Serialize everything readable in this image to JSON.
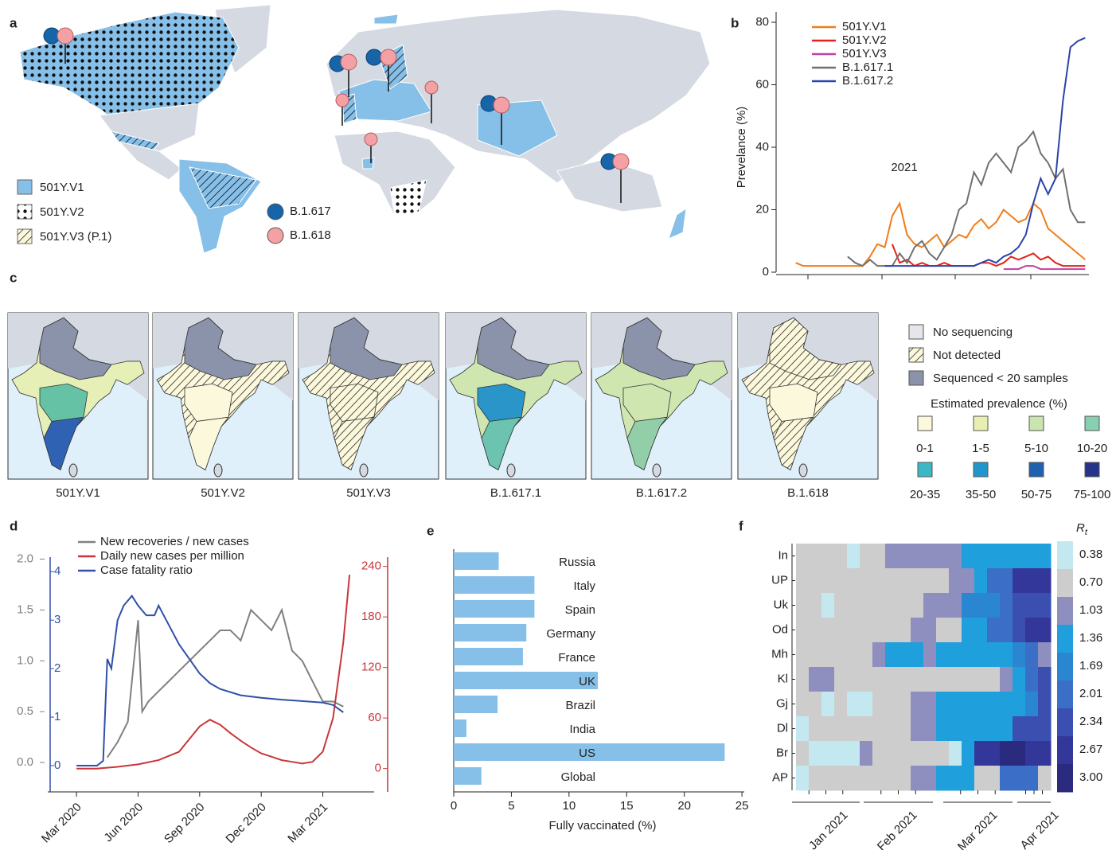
{
  "panel_labels": [
    "a",
    "b",
    "c",
    "d",
    "e",
    "f"
  ],
  "map_a": {
    "legend": [
      "501Y.V1",
      "501Y.V2",
      "501Y.V3 (P.1)"
    ],
    "pins": [
      "B.1.617",
      "B.1.618"
    ]
  },
  "map_c": {
    "panels": [
      "501Y.V1",
      "501Y.V2",
      "501Y.V3",
      "B.1.617.1",
      "B.1.617.2",
      "B.1.618"
    ],
    "legend": [
      "No sequencing",
      "Not detected",
      "Sequenced < 20 samples"
    ],
    "scale_title": "Estimated prevalence (%)",
    "bins": [
      "0-1",
      "1-5",
      "5-10",
      "10-20",
      "20-35",
      "35-50",
      "50-75",
      "75-100"
    ]
  },
  "chart_data": [
    {
      "type": "line",
      "ylabel": "Prevelance (%)",
      "annotation": "2021",
      "categories": [
        null,
        null,
        null,
        null,
        null,
        null,
        null,
        null,
        null,
        null,
        null,
        null,
        null,
        null,
        null,
        null,
        null,
        null,
        null,
        null,
        null,
        null,
        null,
        null,
        null,
        null,
        null,
        null,
        null,
        null,
        null,
        null,
        null,
        null,
        null,
        null,
        null,
        null,
        null,
        null
      ],
      "ylim": [
        0,
        80
      ],
      "yticks": [
        0,
        20,
        40,
        60,
        80
      ],
      "series": [
        {
          "name": "501Y.V1",
          "color": "#f07d1a",
          "values": [
            3,
            2,
            2,
            2,
            2,
            2,
            2,
            2,
            2,
            2,
            5,
            9,
            8,
            18,
            22,
            12,
            9,
            8,
            10,
            12,
            8,
            10,
            12,
            11,
            15,
            17,
            14,
            16,
            20,
            18,
            16,
            17,
            22,
            20,
            14,
            12,
            10,
            8,
            6,
            4
          ]
        },
        {
          "name": "501Y.V2",
          "color": "#e2231a",
          "values": [
            null,
            null,
            null,
            null,
            null,
            null,
            null,
            null,
            null,
            null,
            null,
            null,
            null,
            9,
            3,
            4,
            2,
            3,
            2,
            2,
            3,
            2,
            2,
            2,
            2,
            3,
            3,
            2,
            3,
            5,
            4,
            5,
            6,
            4,
            5,
            3,
            2,
            2,
            2,
            2
          ]
        },
        {
          "name": "501Y.V3",
          "color": "#c040a0",
          "values": [
            null,
            null,
            null,
            null,
            null,
            null,
            null,
            null,
            null,
            null,
            null,
            null,
            null,
            null,
            null,
            null,
            null,
            null,
            null,
            null,
            null,
            null,
            null,
            null,
            null,
            null,
            null,
            null,
            1,
            1,
            1,
            2,
            2,
            1,
            1,
            1,
            1,
            1,
            1,
            1
          ]
        },
        {
          "name": "B.1.617.1",
          "color": "#707070",
          "values": [
            null,
            null,
            null,
            null,
            null,
            null,
            null,
            5,
            3,
            2,
            4,
            2,
            2,
            2,
            6,
            3,
            8,
            10,
            6,
            4,
            8,
            12,
            20,
            22,
            32,
            28,
            35,
            38,
            35,
            32,
            40,
            42,
            45,
            38,
            35,
            30,
            33,
            20,
            16,
            16
          ]
        },
        {
          "name": "B.1.617.2",
          "color": "#2a44a8",
          "values": [
            null,
            null,
            null,
            null,
            null,
            null,
            null,
            null,
            null,
            null,
            null,
            null,
            2,
            2,
            2,
            2,
            2,
            2,
            2,
            2,
            2,
            2,
            2,
            2,
            2,
            3,
            4,
            3,
            5,
            6,
            8,
            12,
            22,
            30,
            25,
            30,
            55,
            72,
            74,
            75
          ]
        }
      ]
    },
    {
      "type": "multi-axis-line",
      "xlim": [
        -1.4,
        14.5
      ],
      "xticks": [
        {
          "value": 0,
          "label": "Mar 2020"
        },
        {
          "value": 3,
          "label": "Jun 2020"
        },
        {
          "value": 6,
          "label": "Sep 2020"
        },
        {
          "value": 9,
          "label": "Dec 2020"
        },
        {
          "value": 12,
          "label": "Mar 2021"
        }
      ],
      "ylim": [
        -0.25,
        2.02
      ],
      "yticks": [
        {
          "value": 0,
          "label": "0.0"
        },
        0.5,
        {
          "value": 1,
          "label": "1.0"
        },
        1.5,
        {
          "value": 2,
          "label": "2.0"
        }
      ],
      "y2lim": [
        -0.46,
        4.3
      ],
      "y2ticks": [
        0,
        1,
        2,
        3,
        4
      ],
      "y3lim": [
        -23,
        251
      ],
      "y3ticks": [
        0,
        60,
        120,
        180,
        240
      ],
      "series": [
        {
          "name": "New recoveries / new cases",
          "color": "#808080",
          "axis": "y",
          "x": [
            1.5,
            2,
            2.5,
            3,
            3.2,
            3.5,
            4,
            4.5,
            5,
            5.5,
            6,
            6.5,
            7,
            7.5,
            8,
            8.5,
            9,
            9.5,
            10,
            10.5,
            11,
            11.5,
            12,
            12.5,
            13
          ],
          "values": [
            0.05,
            0.2,
            0.4,
            1.4,
            0.5,
            0.6,
            0.7,
            0.8,
            0.9,
            1.0,
            1.1,
            1.2,
            1.3,
            1.3,
            1.2,
            1.5,
            1.4,
            1.3,
            1.5,
            1.1,
            1.0,
            0.8,
            0.6,
            0.6,
            0.55
          ]
        },
        {
          "name": "Daily new cases per million",
          "color": "#c8363a",
          "axis": "y3",
          "x": [
            0,
            1,
            2,
            3,
            4,
            5,
            5.5,
            6,
            6.5,
            7,
            7.5,
            8,
            8.5,
            9,
            9.5,
            10,
            10.5,
            11,
            11.5,
            12,
            12.5,
            13,
            13.3
          ],
          "values": [
            0,
            0,
            2,
            5,
            10,
            20,
            35,
            50,
            58,
            52,
            42,
            33,
            25,
            18,
            14,
            10,
            8,
            6,
            8,
            20,
            60,
            150,
            230
          ]
        },
        {
          "name": "Case fatality ratio",
          "color": "#3050a8",
          "axis": "y2",
          "x": [
            0,
            0.5,
            1,
            1.3,
            1.5,
            1.7,
            2,
            2.3,
            2.7,
            3,
            3.4,
            3.8,
            4,
            4.5,
            5,
            5.5,
            6,
            6.5,
            7,
            8,
            9,
            10,
            11,
            12,
            12.5,
            13
          ],
          "values": [
            0,
            0,
            0,
            0.1,
            2.2,
            2.0,
            3.0,
            3.3,
            3.5,
            3.3,
            3.1,
            3.1,
            3.3,
            2.9,
            2.5,
            2.2,
            1.9,
            1.7,
            1.58,
            1.45,
            1.4,
            1.36,
            1.33,
            1.3,
            1.25,
            1.1
          ]
        }
      ]
    },
    {
      "type": "barh",
      "xlabel": "Fully vaccinated (%)",
      "color": "#86bfe8",
      "categories": [
        "Russia",
        "Italy",
        "Spain",
        "Germany",
        "France",
        "UK",
        "Brazil",
        "India",
        "US",
        "Global"
      ],
      "values": [
        3.9,
        7.0,
        7.0,
        6.3,
        6.0,
        12.5,
        3.8,
        1.1,
        23.5,
        2.4
      ],
      "xlim": [
        0,
        25.2
      ],
      "xticks": [
        0,
        5,
        10,
        15,
        20,
        25
      ]
    },
    {
      "type": "heatmap",
      "colorbar_title": "R",
      "colorbar_subscript": "t",
      "rows": [
        "In",
        "UP",
        "Uk",
        "Od",
        "Mh",
        "Kl",
        "Gj",
        "Dl",
        "Br",
        "AP"
      ],
      "months": [
        "Jan 2021",
        "Feb 2021",
        "Mar 2021",
        "Apr 2021"
      ],
      "colorbar": [
        0.38,
        {
          "value": 0.7,
          "label": "0.70"
        },
        1.03,
        1.36,
        1.69,
        2.01,
        2.34,
        2.67,
        {
          "value": 3,
          "label": "3.00"
        }
      ],
      "colors": [
        "#c4e8f0",
        "#cdcdcd",
        "#8f8fbf",
        "#1fa0dc",
        "#2a86d0",
        "#3b6fc7",
        "#3a4fb0",
        "#34379a",
        "#2a2a7e"
      ],
      "values": [
        [
          0.7,
          0.7,
          0.7,
          0.7,
          0.38,
          0.7,
          0.7,
          1.03,
          1.03,
          1.03,
          1.03,
          1.03,
          1.03,
          1.36,
          1.36,
          1.36,
          1.36,
          1.36,
          1.36,
          1.36
        ],
        [
          0.7,
          0.7,
          0.7,
          0.7,
          0.7,
          0.7,
          0.7,
          0.7,
          0.7,
          0.7,
          0.7,
          0.7,
          1.03,
          1.03,
          1.36,
          2.01,
          2.01,
          2.67,
          2.67,
          2.67
        ],
        [
          0.7,
          0.7,
          0.38,
          0.7,
          0.7,
          0.7,
          0.7,
          0.7,
          0.7,
          0.7,
          1.03,
          1.03,
          1.03,
          1.69,
          1.69,
          1.69,
          2.01,
          2.34,
          2.34,
          2.34
        ],
        [
          0.7,
          0.7,
          0.7,
          0.7,
          0.7,
          0.7,
          0.7,
          0.7,
          0.7,
          1.03,
          1.03,
          0.7,
          0.7,
          1.36,
          1.36,
          2.01,
          2.01,
          2.34,
          2.67,
          2.67
        ],
        [
          0.7,
          0.7,
          0.7,
          0.7,
          0.7,
          0.7,
          1.03,
          1.36,
          1.36,
          1.36,
          1.03,
          1.36,
          1.36,
          1.36,
          1.36,
          1.36,
          1.36,
          1.69,
          2.01,
          1.03
        ],
        [
          0.7,
          1.03,
          1.03,
          0.7,
          0.7,
          0.7,
          0.7,
          0.7,
          0.7,
          0.7,
          0.7,
          0.7,
          0.7,
          0.7,
          0.7,
          0.7,
          1.03,
          1.36,
          2.01,
          2.34
        ],
        [
          0.7,
          0.7,
          0.38,
          0.7,
          0.38,
          0.38,
          0.7,
          0.7,
          0.7,
          1.03,
          1.03,
          1.36,
          1.36,
          1.36,
          1.36,
          1.36,
          1.36,
          1.36,
          1.69,
          2.34
        ],
        [
          0.38,
          0.7,
          0.7,
          0.7,
          0.7,
          0.7,
          0.7,
          0.7,
          0.7,
          1.03,
          1.03,
          1.36,
          1.36,
          1.36,
          1.36,
          1.36,
          1.36,
          2.34,
          2.34,
          2.34
        ],
        [
          0.7,
          0.38,
          0.38,
          0.38,
          0.38,
          1.03,
          0.7,
          0.7,
          0.7,
          0.7,
          0.7,
          0.7,
          0.38,
          1.36,
          2.67,
          2.67,
          3,
          3,
          2.67,
          2.67
        ],
        [
          0.38,
          0.7,
          0.7,
          0.7,
          0.7,
          0.7,
          0.7,
          0.7,
          0.7,
          1.03,
          1.03,
          1.36,
          1.36,
          1.36,
          0.7,
          0.7,
          2.01,
          2.01,
          2.01,
          0.7
        ]
      ]
    }
  ]
}
